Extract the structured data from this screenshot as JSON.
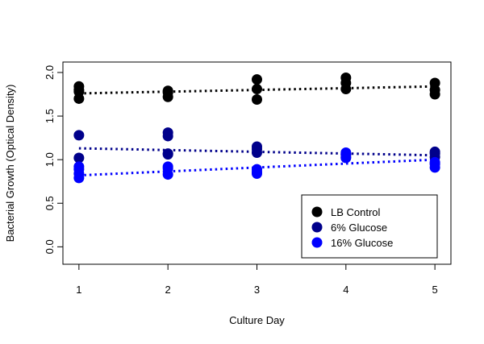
{
  "chart_data": {
    "type": "scatter",
    "title": "",
    "xlabel": "Culture Day",
    "ylabel": "Bacterial Growth (Optical Density)",
    "xlim": [
      0.82,
      5.18
    ],
    "ylim": [
      -0.2,
      2.12
    ],
    "x_ticks": [
      1,
      2,
      3,
      4,
      5
    ],
    "y_ticks": [
      0.0,
      0.5,
      1.0,
      1.5,
      2.0
    ],
    "y_tick_labels": [
      "0.0",
      "0.5",
      "1.0",
      "1.5",
      "2.0"
    ],
    "grid": false,
    "legend_position": "bottom-right",
    "series": [
      {
        "name": "LB Control",
        "color": "#000000",
        "points": [
          [
            1,
            1.84
          ],
          [
            1,
            1.8
          ],
          [
            1,
            1.78
          ],
          [
            1,
            1.7
          ],
          [
            2,
            1.79
          ],
          [
            2,
            1.77
          ],
          [
            2,
            1.72
          ],
          [
            3,
            1.92
          ],
          [
            3,
            1.81
          ],
          [
            3,
            1.69
          ],
          [
            4,
            1.94
          ],
          [
            4,
            1.88
          ],
          [
            4,
            1.81
          ],
          [
            5,
            1.88
          ],
          [
            5,
            1.8
          ],
          [
            5,
            1.75
          ]
        ],
        "trend": [
          [
            1,
            1.76
          ],
          [
            5,
            1.84
          ]
        ]
      },
      {
        "name": "6% Glucose",
        "color": "#00008B",
        "points": [
          [
            1,
            1.28
          ],
          [
            1,
            1.02
          ],
          [
            2,
            1.31
          ],
          [
            2,
            1.27
          ],
          [
            2,
            1.07
          ],
          [
            2,
            1.06
          ],
          [
            3,
            1.15
          ],
          [
            3,
            1.12
          ],
          [
            3,
            1.08
          ],
          [
            4,
            1.06
          ],
          [
            4,
            1.03
          ],
          [
            5,
            1.09
          ],
          [
            5,
            1.07
          ],
          [
            5,
            1.03
          ]
        ],
        "trend": [
          [
            1,
            1.13
          ],
          [
            5,
            1.05
          ]
        ]
      },
      {
        "name": "16% Glucose",
        "color": "#0000FF",
        "points": [
          [
            1,
            0.92
          ],
          [
            1,
            0.89
          ],
          [
            1,
            0.84
          ],
          [
            1,
            0.79
          ],
          [
            2,
            0.92
          ],
          [
            2,
            0.9
          ],
          [
            2,
            0.83
          ],
          [
            3,
            0.89
          ],
          [
            3,
            0.86
          ],
          [
            3,
            0.84
          ],
          [
            4,
            1.08
          ],
          [
            4,
            1.06
          ],
          [
            4,
            1.02
          ],
          [
            5,
            0.97
          ],
          [
            5,
            0.95
          ],
          [
            5,
            0.91
          ]
        ],
        "trend": [
          [
            1,
            0.82
          ],
          [
            5,
            1.0
          ]
        ]
      }
    ]
  }
}
